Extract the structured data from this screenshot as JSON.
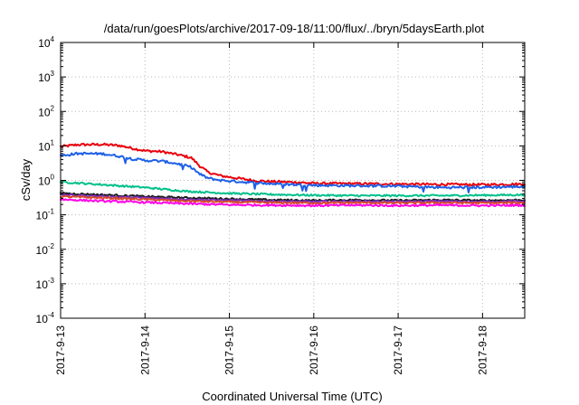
{
  "chart_data": {
    "type": "line",
    "title": "/data/run/goesPlots/archive/2017-09-18/11:00/flux/../bryn/5daysEarth.plot",
    "xlabel": "Coordinated Universal Time (UTC)",
    "ylabel": "cSv/day",
    "yscale": "log",
    "ylim": [
      0.0001,
      10000
    ],
    "xlim": [
      0,
      5.5
    ],
    "x_unit": "days since 2017-9-13 00:00 UTC",
    "grid": true,
    "legend": "none",
    "yticks": [
      {
        "value": 0.0001,
        "base": "10",
        "exp": "-4"
      },
      {
        "value": 0.001,
        "base": "10",
        "exp": "-3"
      },
      {
        "value": 0.01,
        "base": "10",
        "exp": "-2"
      },
      {
        "value": 0.1,
        "base": "10",
        "exp": "-1"
      },
      {
        "value": 1,
        "base": "10",
        "exp": "0"
      },
      {
        "value": 10,
        "base": "10",
        "exp": "1"
      },
      {
        "value": 100,
        "base": "10",
        "exp": "2"
      },
      {
        "value": 1000,
        "base": "10",
        "exp": "3"
      },
      {
        "value": 10000,
        "base": "10",
        "exp": "4"
      }
    ],
    "xticks": [
      {
        "value": 0,
        "label": "2017-9-13"
      },
      {
        "value": 1,
        "label": "2017-9-14"
      },
      {
        "value": 2,
        "label": "2017-9-15"
      },
      {
        "value": 3,
        "label": "2017-9-16"
      },
      {
        "value": 4,
        "label": "2017-9-17"
      },
      {
        "value": 5,
        "label": "2017-9-18"
      }
    ],
    "series": [
      {
        "color": "#e8000b",
        "x": [
          0,
          0.2,
          0.5,
          0.7,
          0.85,
          1.0,
          1.2,
          1.4,
          1.55,
          1.65,
          1.75,
          1.9,
          2.1,
          2.3,
          2.5,
          2.8,
          3.0,
          3.5,
          4.0,
          4.5,
          5.0,
          5.5
        ],
        "y": [
          9.5,
          10.8,
          11.0,
          10.2,
          8.5,
          7.2,
          6.8,
          5.5,
          4.5,
          2.6,
          1.7,
          1.35,
          1.15,
          0.98,
          0.92,
          0.88,
          0.82,
          0.8,
          0.78,
          0.76,
          0.75,
          0.78
        ]
      },
      {
        "color": "#1f5fe8",
        "x": [
          0,
          0.2,
          0.5,
          0.7,
          0.85,
          1.0,
          1.2,
          1.4,
          1.55,
          1.65,
          1.75,
          1.9,
          2.1,
          2.3,
          2.5,
          2.8,
          3.0,
          3.5,
          4.0,
          4.5,
          5.0,
          5.5
        ],
        "y": [
          5.2,
          6.0,
          5.9,
          5.0,
          4.2,
          3.8,
          3.6,
          3.0,
          2.4,
          1.5,
          1.15,
          1.0,
          0.92,
          0.85,
          0.8,
          0.75,
          0.72,
          0.7,
          0.68,
          0.62,
          0.63,
          0.66
        ]
      },
      {
        "color": "#00c08a",
        "x": [
          0,
          0.5,
          1.0,
          1.5,
          2.0,
          2.5,
          3.0,
          3.5,
          4.0,
          4.5,
          5.0,
          5.5
        ],
        "y": [
          0.9,
          0.75,
          0.62,
          0.48,
          0.42,
          0.39,
          0.37,
          0.36,
          0.36,
          0.36,
          0.37,
          0.38
        ]
      },
      {
        "color": "#1a1a1a",
        "x": [
          0,
          0.5,
          1.0,
          1.5,
          2.0,
          2.5,
          3.0,
          3.5,
          4.0,
          4.5,
          5.0,
          5.5
        ],
        "y": [
          0.42,
          0.38,
          0.34,
          0.31,
          0.29,
          0.27,
          0.26,
          0.27,
          0.26,
          0.27,
          0.26,
          0.27
        ]
      },
      {
        "color": "#7a2cbf",
        "x": [
          0,
          0.5,
          1.0,
          1.5,
          2.0,
          2.5,
          3.0,
          3.5,
          4.0,
          4.5,
          5.0,
          5.5
        ],
        "y": [
          0.38,
          0.34,
          0.31,
          0.28,
          0.26,
          0.25,
          0.24,
          0.25,
          0.24,
          0.25,
          0.24,
          0.25
        ]
      },
      {
        "color": "#d94a2a",
        "x": [
          0,
          0.5,
          1.0,
          1.5,
          2.0,
          2.5,
          3.0,
          3.5,
          4.0,
          4.5,
          5.0,
          5.5
        ],
        "y": [
          0.34,
          0.31,
          0.28,
          0.25,
          0.235,
          0.225,
          0.22,
          0.225,
          0.22,
          0.225,
          0.22,
          0.225
        ]
      },
      {
        "color": "#ff00e6",
        "x": [
          0,
          0.5,
          1.0,
          1.5,
          2.0,
          2.5,
          3.0,
          3.5,
          4.0,
          4.5,
          5.0,
          5.5
        ],
        "y": [
          0.28,
          0.25,
          0.23,
          0.21,
          0.195,
          0.19,
          0.185,
          0.19,
          0.185,
          0.19,
          0.185,
          0.19
        ]
      }
    ]
  }
}
